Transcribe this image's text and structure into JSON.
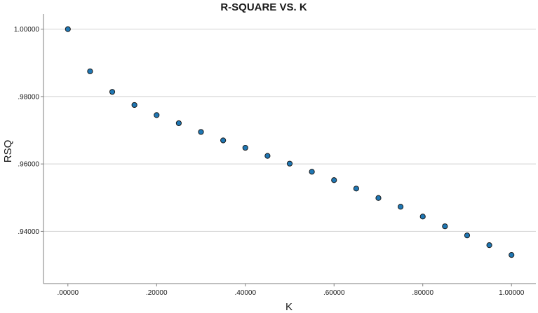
{
  "chart_data": {
    "type": "scatter",
    "title": "R-SQUARE VS. K",
    "xlabel": "K",
    "ylabel": "RSQ",
    "xlim": [
      -0.055,
      1.055
    ],
    "ylim": [
      0.9245,
      1.0045
    ],
    "grid": true,
    "grid_axis": "y",
    "legend": "none",
    "marker_color": "#1f77b4",
    "marker_edge_color": "#1a1a1a",
    "xticks": [
      0.0,
      0.2,
      0.4,
      0.6,
      0.8,
      1.0
    ],
    "xtick_labels": [
      ".00000",
      ".20000",
      ".40000",
      ".60000",
      ".80000",
      "1.00000"
    ],
    "yticks": [
      0.94,
      0.96,
      0.98,
      1.0
    ],
    "ytick_labels": [
      ".94000",
      ".96000",
      ".98000",
      "1.00000"
    ],
    "series": [
      {
        "x": [
          0.0,
          0.05,
          0.1,
          0.15,
          0.2,
          0.25,
          0.3,
          0.35,
          0.4,
          0.45,
          0.5,
          0.55,
          0.6,
          0.65,
          0.7,
          0.75,
          0.8,
          0.85,
          0.9,
          0.95,
          1.0
        ],
        "y": [
          1.0,
          0.9875,
          0.9814,
          0.9775,
          0.9745,
          0.9721,
          0.9695,
          0.967,
          0.9648,
          0.9624,
          0.9601,
          0.9577,
          0.9552,
          0.9527,
          0.9499,
          0.9473,
          0.9444,
          0.9415,
          0.9388,
          0.9359,
          0.933
        ]
      }
    ]
  }
}
